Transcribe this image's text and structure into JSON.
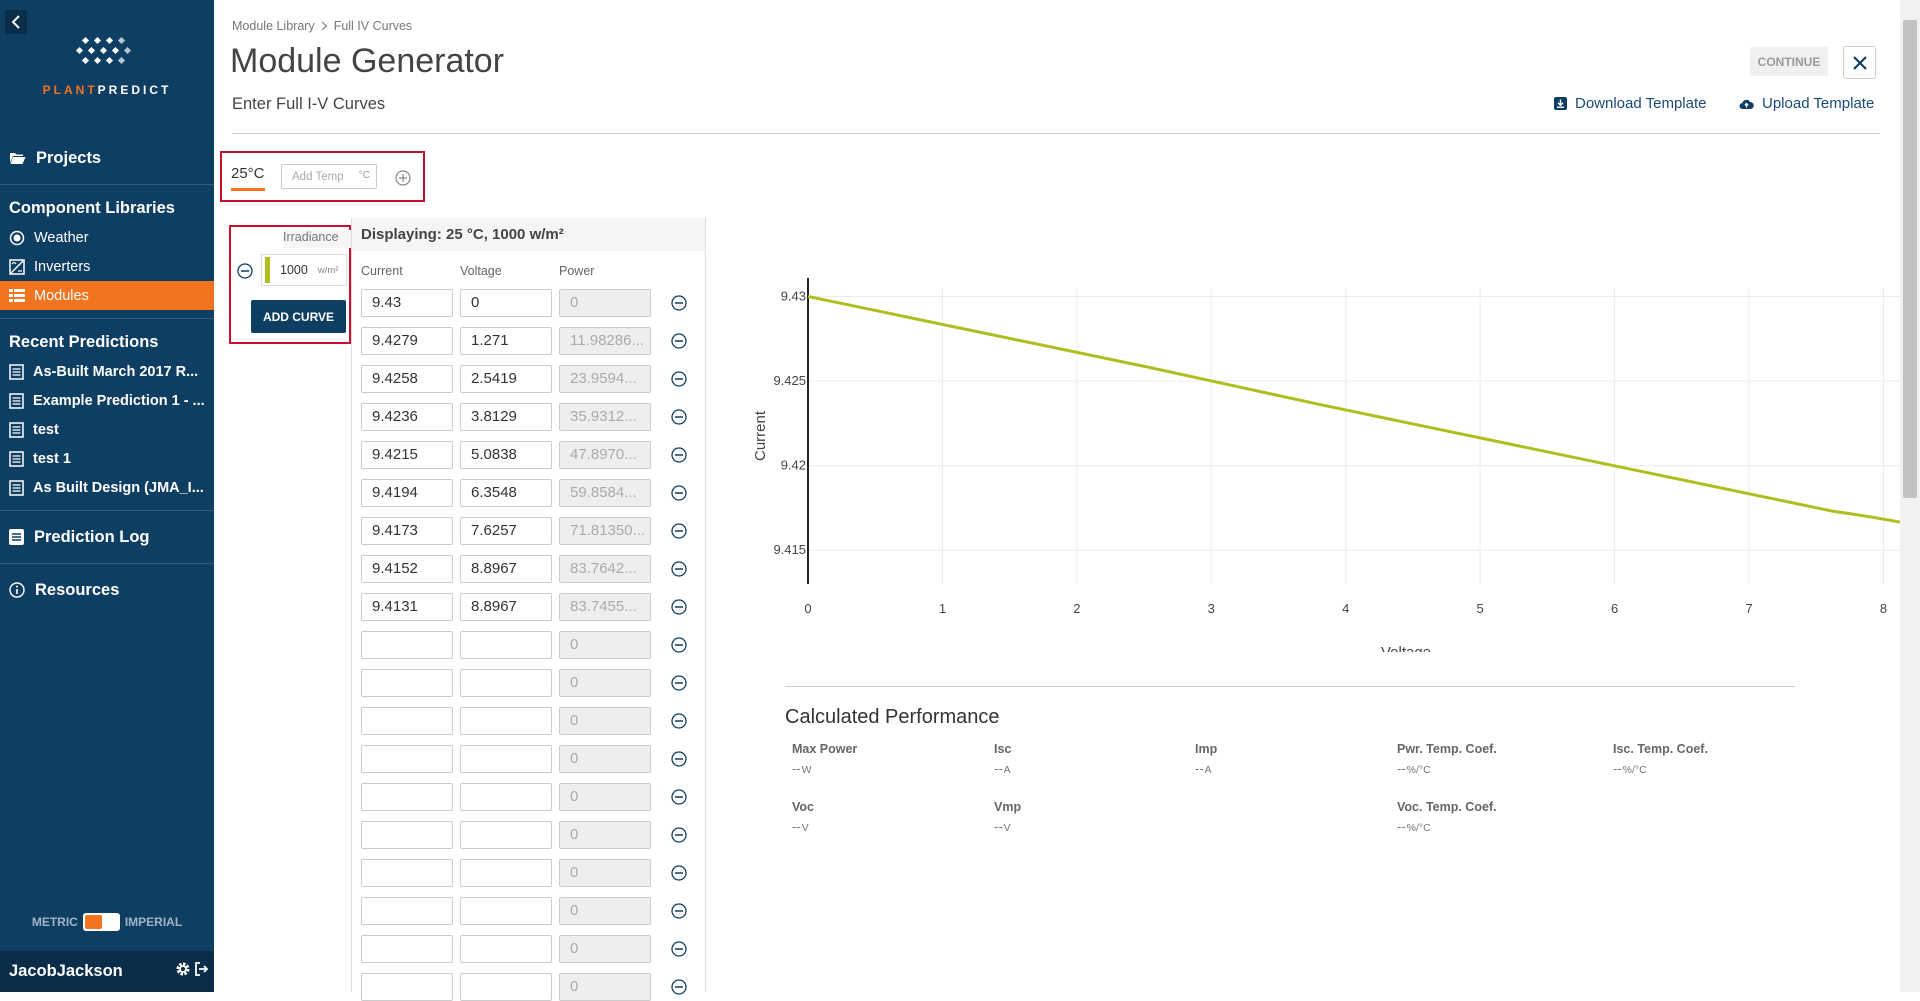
{
  "sidebar": {
    "brand": {
      "part1": "PLANT",
      "part2": "PREDICT"
    },
    "projects": "Projects",
    "component_libraries": "Component Libraries",
    "libraries": [
      {
        "label": "Weather",
        "icon": "weather-icon"
      },
      {
        "label": "Inverters",
        "icon": "inverter-icon"
      },
      {
        "label": "Modules",
        "icon": "modules-icon",
        "active": true
      }
    ],
    "recent_predictions": "Recent Predictions",
    "recent": [
      "As-Built March 2017 R...",
      "Example Prediction 1 - ...",
      "test",
      "test 1",
      "As Built Design (JMA_I..."
    ],
    "prediction_log": "Prediction Log",
    "resources": "Resources",
    "units": {
      "left": "METRIC",
      "right": "IMPERIAL"
    },
    "user": "JacobJackson"
  },
  "header": {
    "breadcrumb": [
      "Module Library",
      "Full IV Curves"
    ],
    "title": "Module Generator",
    "continue": "CONTINUE",
    "subtitle": "Enter Full I-V Curves",
    "download": "Download Template",
    "upload": "Upload Template"
  },
  "temps": {
    "active": "25°C",
    "add_placeholder": "Add Temp",
    "add_unit": "°C"
  },
  "irradiance": {
    "heading": "Irradiance",
    "value": "1000",
    "unit": "w/m²",
    "swatch_color": "#b1bd1e",
    "add_curve": "ADD CURVE"
  },
  "table": {
    "caption": "Displaying: 25 °C, 1000 w/m²",
    "headers": [
      "Current",
      "Voltage",
      "Power"
    ],
    "rows": [
      [
        "9.43",
        "0",
        "0"
      ],
      [
        "9.4279",
        "1.271",
        "11.98286..."
      ],
      [
        "9.4258",
        "2.5419",
        "23.9594..."
      ],
      [
        "9.4236",
        "3.8129",
        "35.9312..."
      ],
      [
        "9.4215",
        "5.0838",
        "47.8970..."
      ],
      [
        "9.4194",
        "6.3548",
        "59.8584..."
      ],
      [
        "9.4173",
        "7.6257",
        "71.81350..."
      ],
      [
        "9.4152",
        "8.8967",
        "83.7642..."
      ],
      [
        "9.4131",
        "8.8967",
        "83.7455..."
      ],
      [
        "",
        "",
        "0"
      ],
      [
        "",
        "",
        "0"
      ],
      [
        "",
        "",
        "0"
      ],
      [
        "",
        "",
        "0"
      ],
      [
        "",
        "",
        "0"
      ],
      [
        "",
        "",
        "0"
      ],
      [
        "",
        "",
        "0"
      ],
      [
        "",
        "",
        "0"
      ],
      [
        "",
        "",
        "0"
      ],
      [
        "",
        "",
        "0"
      ]
    ]
  },
  "chart_data": {
    "type": "line",
    "xlabel": "Voltage",
    "ylabel": "Current",
    "xlim": [
      0,
      8.8967
    ],
    "ylim": [
      9.413,
      9.4305
    ],
    "xticks": [
      0,
      1,
      2,
      3,
      4,
      5,
      6,
      7,
      8
    ],
    "yticks": [
      9.415,
      9.42,
      9.425,
      9.43
    ],
    "ytick_labels": [
      "9.415",
      "9.42",
      "9.425",
      "9.43"
    ],
    "grid": true,
    "series_color": "#b1bd1e",
    "series": [
      {
        "x": [
          0,
          1.271,
          2.5419,
          3.8129,
          5.0838,
          6.3548,
          7.6257,
          8.8967,
          8.8967
        ],
        "y": [
          9.43,
          9.4279,
          9.4258,
          9.4236,
          9.4215,
          9.4194,
          9.4173,
          9.4152,
          9.4131
        ]
      }
    ]
  },
  "performance": {
    "title": "Calculated Performance",
    "items": [
      {
        "label": "Max Power",
        "value": "--",
        "unit": "W"
      },
      {
        "label": "Isc",
        "value": "--",
        "unit": "A"
      },
      {
        "label": "Imp",
        "value": "--",
        "unit": "A"
      },
      {
        "label": "Pwr. Temp. Coef.",
        "value": "--",
        "unit": "%/°C"
      },
      {
        "label": "Isc. Temp. Coef.",
        "value": "--",
        "unit": "%/°C"
      },
      {
        "label": "Voc",
        "value": "--",
        "unit": "V"
      },
      {
        "label": "Vmp",
        "value": "--",
        "unit": "V"
      },
      {
        "label": "Voc. Temp. Coef.",
        "value": "--",
        "unit": "%/°C"
      }
    ]
  }
}
